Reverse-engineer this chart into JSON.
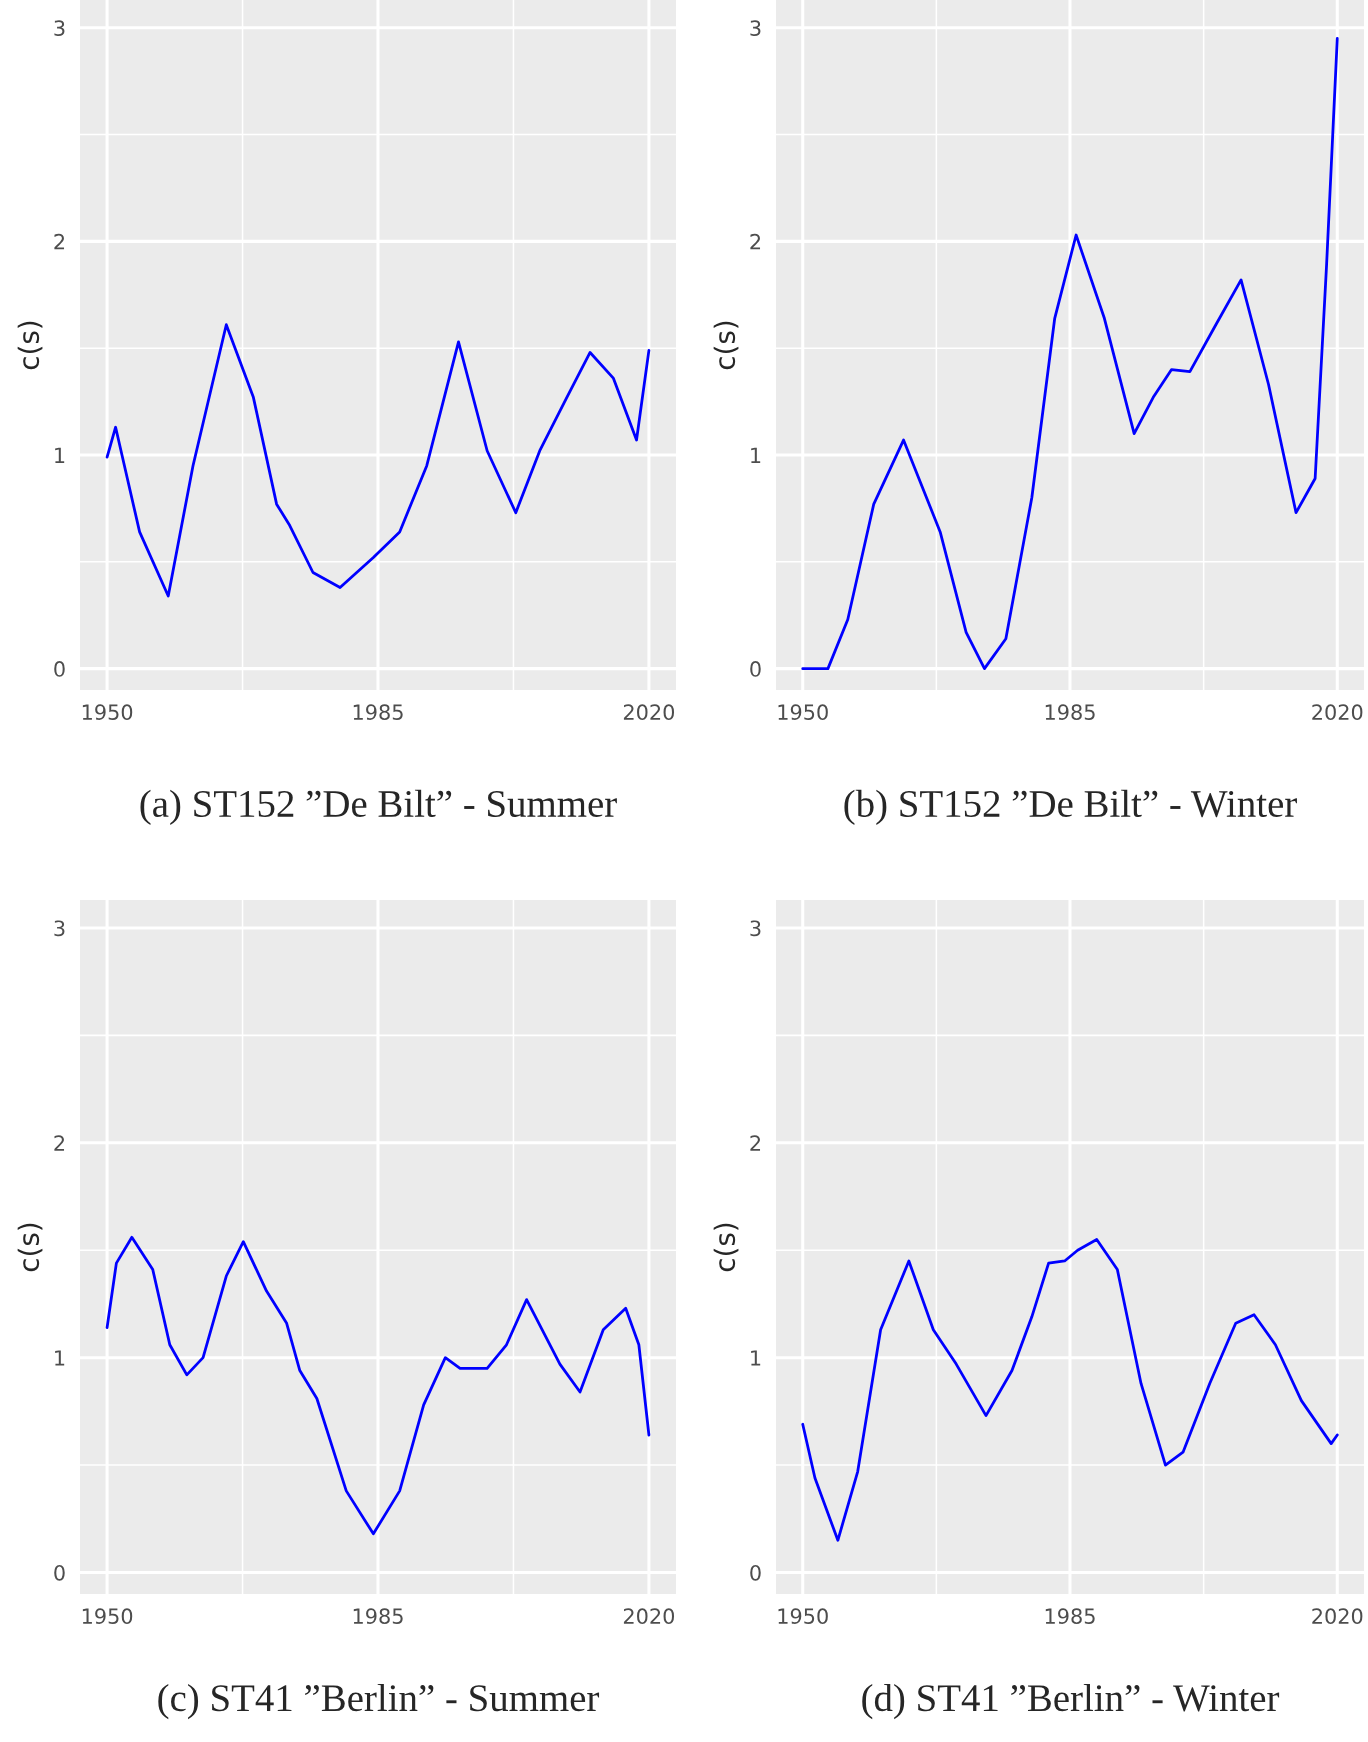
{
  "chart_data": [
    {
      "type": "line",
      "title": "(a) ST152 ”De Bilt” - Summer",
      "ylabel": "c(s)",
      "xlim": [
        1946.5,
        2023.5
      ],
      "ylim": [
        -0.1,
        3.13
      ],
      "xticks": [
        1950,
        1985,
        2020
      ],
      "yticks": [
        0,
        1,
        2,
        3
      ],
      "grid": true,
      "series": [
        {
          "color": "#0000ff",
          "x": [
            1950,
            1951.1,
            1954.2,
            1957.9,
            1961.1,
            1965.4,
            1968.9,
            1971.9,
            1973.6,
            1976.6,
            1980.1,
            1984.4,
            1987.8,
            1991.3,
            1995.4,
            1999.1,
            2002.8,
            2005.9,
            2009.4,
            2012.4,
            2015.4,
            2018.4,
            2020
          ],
          "values": [
            0.99,
            1.13,
            0.64,
            0.34,
            0.95,
            1.61,
            1.27,
            0.77,
            0.67,
            0.45,
            0.38,
            0.52,
            0.64,
            0.95,
            1.53,
            1.02,
            0.73,
            1.02,
            1.27,
            1.48,
            1.36,
            1.07,
            1.49
          ]
        }
      ]
    },
    {
      "type": "line",
      "title": "(b) ST152 ”De Bilt” - Winter",
      "ylabel": "c(s)",
      "xlim": [
        1946.5,
        2023.5
      ],
      "ylim": [
        -0.1,
        3.13
      ],
      "xticks": [
        1950,
        1985,
        2020
      ],
      "yticks": [
        0,
        1,
        2,
        3
      ],
      "grid": true,
      "series": [
        {
          "color": "#0000ff",
          "x": [
            1950,
            1953.3,
            1955.9,
            1959.3,
            1963.2,
            1968,
            1971.4,
            1973.8,
            1976.6,
            1980,
            1983,
            1985.8,
            1989.5,
            1993.4,
            1995.9,
            1998.3,
            2000.7,
            2004.1,
            2007.4,
            2011,
            2014.6,
            2017.1,
            2018.6,
            2020
          ],
          "values": [
            0,
            0,
            0.23,
            0.77,
            1.07,
            0.64,
            0.17,
            0.0,
            0.14,
            0.8,
            1.64,
            2.03,
            1.64,
            1.1,
            1.27,
            1.4,
            1.39,
            1.61,
            1.82,
            1.33,
            0.73,
            0.89,
            1.89,
            2.95
          ]
        }
      ]
    },
    {
      "type": "line",
      "title": "(c) ST41 ”Berlin” - Summer",
      "ylabel": "c(s)",
      "xlim": [
        1946.5,
        2023.5
      ],
      "ylim": [
        -0.1,
        3.13
      ],
      "xticks": [
        1950,
        1985,
        2020
      ],
      "yticks": [
        0,
        1,
        2,
        3
      ],
      "grid": true,
      "series": [
        {
          "color": "#0000ff",
          "x": [
            1950,
            1951.2,
            1953.2,
            1955.9,
            1958.1,
            1960.3,
            1962.4,
            1965.4,
            1967.6,
            1970.6,
            1973.2,
            1974.9,
            1977.1,
            1980.9,
            1984.4,
            1987.8,
            1990.9,
            1993.7,
            1995.6,
            1999.1,
            2001.6,
            2004.2,
            2008.5,
            2011.1,
            2014.1,
            2017,
            2018.7,
            2020
          ],
          "values": [
            1.14,
            1.44,
            1.56,
            1.41,
            1.06,
            0.92,
            1.0,
            1.38,
            1.54,
            1.31,
            1.16,
            0.94,
            0.81,
            0.38,
            0.18,
            0.38,
            0.78,
            1.0,
            0.95,
            0.95,
            1.06,
            1.27,
            0.97,
            0.84,
            1.13,
            1.23,
            1.06,
            0.64
          ]
        }
      ]
    },
    {
      "type": "line",
      "title": "(d) ST41 ”Berlin” - Winter",
      "ylabel": "c(s)",
      "xlim": [
        1946.5,
        2023.5
      ],
      "ylim": [
        -0.1,
        3.13
      ],
      "xticks": [
        1950,
        1985,
        2020
      ],
      "yticks": [
        0,
        1,
        2,
        3
      ],
      "grid": true,
      "series": [
        {
          "color": "#0000ff",
          "x": [
            1950,
            1951.6,
            1954.6,
            1957.2,
            1960.2,
            1963.9,
            1967.1,
            1970.1,
            1974,
            1977.4,
            1980,
            1982.2,
            1984.3,
            1986,
            1988.5,
            1991.2,
            1994.3,
            1997.5,
            1999.8,
            2003.3,
            2006.7,
            2009.1,
            2011.9,
            2015.3,
            2019.2,
            2020
          ],
          "values": [
            0.69,
            0.44,
            0.15,
            0.47,
            1.13,
            1.45,
            1.13,
            0.97,
            0.73,
            0.94,
            1.19,
            1.44,
            1.45,
            1.5,
            1.55,
            1.41,
            0.88,
            0.5,
            0.56,
            0.88,
            1.16,
            1.2,
            1.06,
            0.8,
            0.6,
            0.64
          ]
        }
      ]
    }
  ]
}
